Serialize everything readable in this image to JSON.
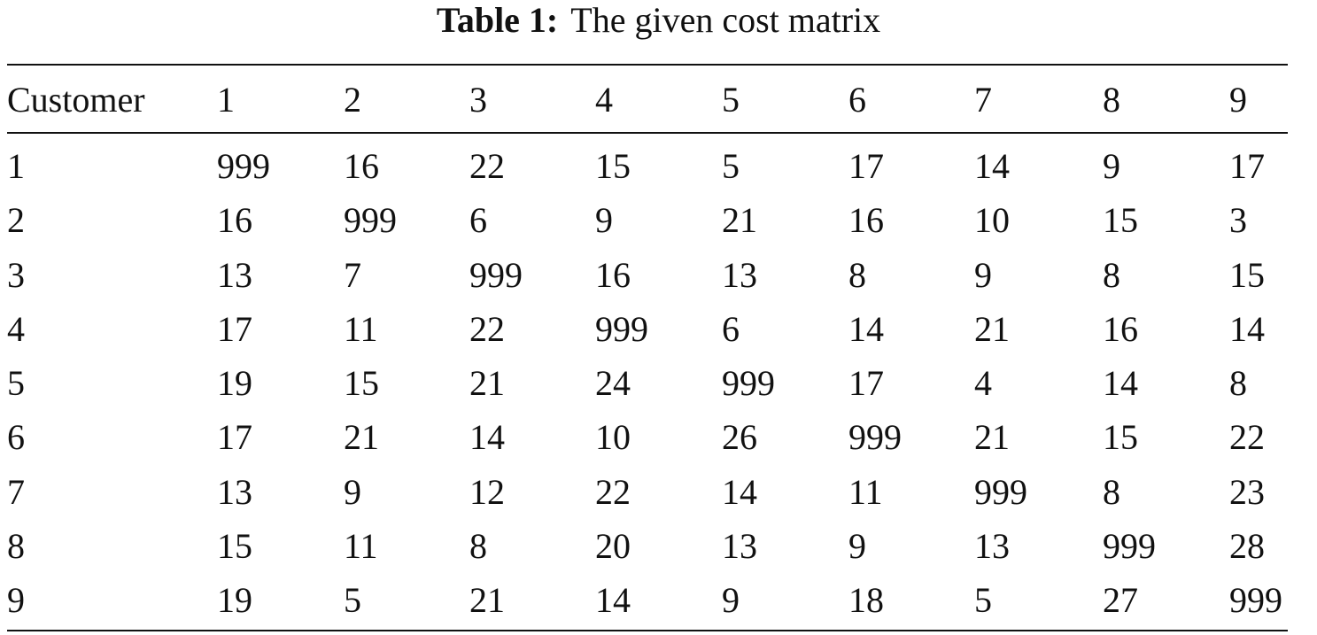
{
  "caption": {
    "label": "Table 1:",
    "title": "The given cost matrix"
  },
  "table": {
    "header": [
      "Customer",
      1,
      2,
      3,
      4,
      5,
      6,
      7,
      8,
      9
    ],
    "rows": [
      [
        1,
        999,
        16,
        22,
        15,
        5,
        17,
        14,
        9,
        17
      ],
      [
        2,
        16,
        999,
        6,
        9,
        21,
        16,
        10,
        15,
        3
      ],
      [
        3,
        13,
        7,
        999,
        16,
        13,
        8,
        9,
        8,
        15
      ],
      [
        4,
        17,
        11,
        22,
        999,
        6,
        14,
        21,
        16,
        14
      ],
      [
        5,
        19,
        15,
        21,
        24,
        999,
        17,
        4,
        14,
        8
      ],
      [
        6,
        17,
        21,
        14,
        10,
        26,
        999,
        21,
        15,
        22
      ],
      [
        7,
        13,
        9,
        12,
        22,
        14,
        11,
        999,
        8,
        23
      ],
      [
        8,
        15,
        11,
        8,
        20,
        13,
        9,
        13,
        999,
        28
      ],
      [
        9,
        19,
        5,
        21,
        14,
        9,
        18,
        5,
        27,
        999
      ]
    ]
  }
}
